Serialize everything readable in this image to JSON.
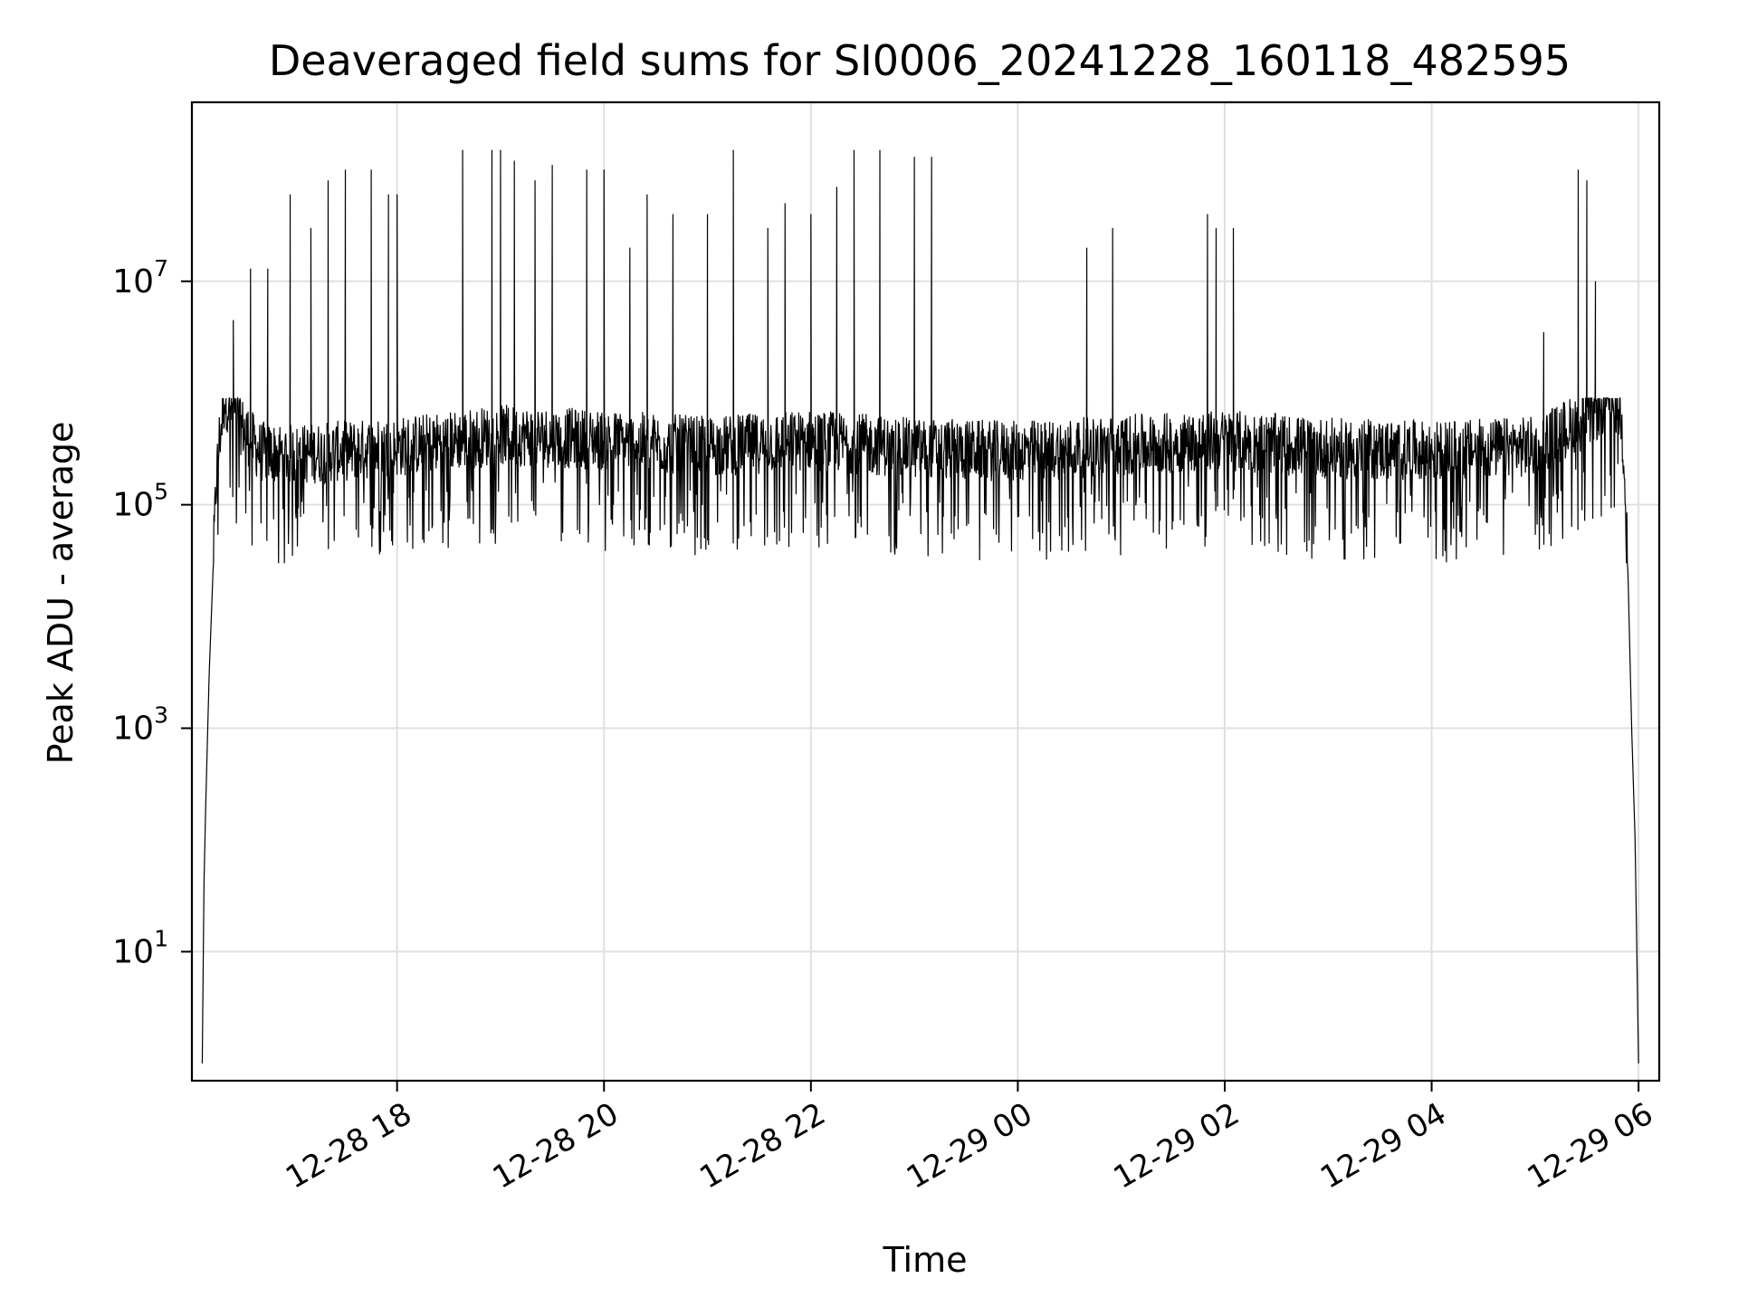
{
  "chart_data": {
    "type": "line",
    "title": "Deaveraged field sums for SI0006_20241228_160118_482595",
    "xlabel": "Time",
    "ylabel": "Peak ADU - average",
    "x_scale": "time",
    "y_scale": "log",
    "xlim": [
      "2024-12-28 16:01",
      "2024-12-29 06:12"
    ],
    "ylim": [
      0.7,
      400000000
    ],
    "grid": true,
    "x_ticks": [
      {
        "t": "2024-12-28 18:00",
        "label": "12-28 18"
      },
      {
        "t": "2024-12-28 20:00",
        "label": "12-28 20"
      },
      {
        "t": "2024-12-28 22:00",
        "label": "12-28 22"
      },
      {
        "t": "2024-12-29 00:00",
        "label": "12-29 00"
      },
      {
        "t": "2024-12-29 02:00",
        "label": "12-29 02"
      },
      {
        "t": "2024-12-29 04:00",
        "label": "12-29 04"
      },
      {
        "t": "2024-12-29 06:00",
        "label": "12-29 06"
      }
    ],
    "y_ticks": [
      {
        "value": 10,
        "base": "10",
        "exp": "1"
      },
      {
        "value": 1000,
        "base": "10",
        "exp": "3"
      },
      {
        "value": 100000,
        "base": "10",
        "exp": "5"
      },
      {
        "value": 10000000,
        "base": "10",
        "exp": "7"
      }
    ],
    "series": [
      {
        "color": "#000000",
        "points": [
          [
            "2024-12-28 16:07",
            1
          ],
          [
            "2024-12-28 16:08",
            40
          ],
          [
            "2024-12-28 16:09",
            200
          ],
          [
            "2024-12-28 16:11",
            3000
          ],
          [
            "2024-12-28 16:13",
            20000
          ],
          [
            "2024-12-28 16:15",
            150000
          ],
          [
            "2024-12-28 16:17",
            400000
          ],
          [
            "2024-12-28 16:20",
            900000
          ],
          [
            "2024-12-28 16:25",
            700000
          ],
          [
            "2024-12-28 16:30",
            500000
          ],
          [
            "2024-12-28 16:40",
            300000
          ],
          [
            "2024-12-28 17:00",
            280000
          ],
          [
            "2024-12-28 18:00",
            330000
          ],
          [
            "2024-12-28 19:00",
            420000
          ],
          [
            "2024-12-28 20:00",
            380000
          ],
          [
            "2024-12-28 21:00",
            330000
          ],
          [
            "2024-12-28 22:00",
            380000
          ],
          [
            "2024-12-28 23:00",
            320000
          ],
          [
            "2024-12-29 00:00",
            300000
          ],
          [
            "2024-12-29 01:00",
            340000
          ],
          [
            "2024-12-29 02:00",
            380000
          ],
          [
            "2024-12-29 03:00",
            320000
          ],
          [
            "2024-12-29 04:00",
            300000
          ],
          [
            "2024-12-29 05:00",
            330000
          ],
          [
            "2024-12-29 05:30",
            600000
          ],
          [
            "2024-12-29 05:45",
            900000
          ],
          [
            "2024-12-29 05:50",
            600000
          ],
          [
            "2024-12-29 05:52",
            200000
          ],
          [
            "2024-12-29 05:54",
            20000
          ],
          [
            "2024-12-29 05:56",
            1000
          ],
          [
            "2024-12-29 05:58",
            100
          ],
          [
            "2024-12-29 06:00",
            1
          ]
        ],
        "noise_range": [
          30000,
          900000
        ],
        "spikes": [
          [
            "2024-12-28 16:25",
            4500000
          ],
          [
            "2024-12-28 16:35",
            13000000
          ],
          [
            "2024-12-28 16:45",
            13000000
          ],
          [
            "2024-12-28 16:58",
            60000000
          ],
          [
            "2024-12-28 17:10",
            30000000
          ],
          [
            "2024-12-28 17:20",
            80000000
          ],
          [
            "2024-12-28 17:30",
            100000000
          ],
          [
            "2024-12-28 17:45",
            100000000
          ],
          [
            "2024-12-28 17:55",
            60000000
          ],
          [
            "2024-12-28 18:00",
            60000000
          ],
          [
            "2024-12-28 18:38",
            150000000
          ],
          [
            "2024-12-28 18:55",
            150000000
          ],
          [
            "2024-12-28 19:00",
            150000000
          ],
          [
            "2024-12-28 19:08",
            120000000
          ],
          [
            "2024-12-28 19:20",
            80000000
          ],
          [
            "2024-12-28 19:30",
            110000000
          ],
          [
            "2024-12-28 19:50",
            100000000
          ],
          [
            "2024-12-28 20:00",
            100000000
          ],
          [
            "2024-12-28 20:15",
            20000000
          ],
          [
            "2024-12-28 20:25",
            60000000
          ],
          [
            "2024-12-28 20:40",
            40000000
          ],
          [
            "2024-12-28 21:00",
            40000000
          ],
          [
            "2024-12-28 21:15",
            150000000
          ],
          [
            "2024-12-28 21:35",
            30000000
          ],
          [
            "2024-12-28 21:45",
            50000000
          ],
          [
            "2024-12-28 22:00",
            40000000
          ],
          [
            "2024-12-28 22:15",
            70000000
          ],
          [
            "2024-12-28 22:25",
            150000000
          ],
          [
            "2024-12-28 22:40",
            150000000
          ],
          [
            "2024-12-28 23:00",
            130000000
          ],
          [
            "2024-12-28 23:10",
            130000000
          ],
          [
            "2024-12-29 00:40",
            20000000
          ],
          [
            "2024-12-29 00:55",
            30000000
          ],
          [
            "2024-12-29 01:50",
            40000000
          ],
          [
            "2024-12-29 01:55",
            30000000
          ],
          [
            "2024-12-29 02:05",
            30000000
          ],
          [
            "2024-12-29 05:05",
            3500000
          ],
          [
            "2024-12-29 05:25",
            100000000
          ],
          [
            "2024-12-29 05:30",
            80000000
          ],
          [
            "2024-12-29 05:35",
            10000000
          ]
        ]
      }
    ]
  }
}
